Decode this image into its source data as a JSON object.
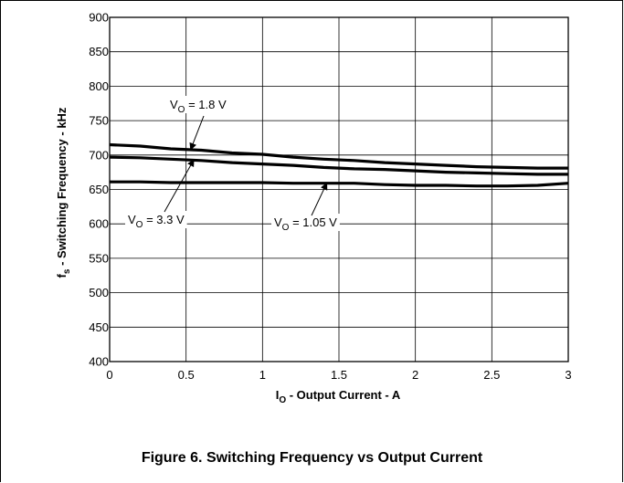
{
  "figure": {
    "caption": "Figure 6. Switching Frequency vs Output Current"
  },
  "chart_data": {
    "type": "line",
    "xlabel": "I",
    "xlabel_sub": "O",
    "xlabel_rest": " - Output Current - A",
    "ylabel": "f",
    "ylabel_sub": "s",
    "ylabel_rest": " - Switching Frequency - kHz",
    "xlim": [
      0,
      3
    ],
    "ylim": [
      400,
      900
    ],
    "xticks": [
      0,
      0.5,
      1,
      1.5,
      2,
      2.5,
      3
    ],
    "xtick_labels": [
      "0",
      "0.5",
      "1",
      "1.5",
      "2",
      "2.5",
      "3"
    ],
    "yticks": [
      400,
      450,
      500,
      550,
      600,
      650,
      700,
      750,
      800,
      850,
      900
    ],
    "ytick_labels": [
      "400",
      "450",
      "500",
      "550",
      "600",
      "650",
      "700",
      "750",
      "800",
      "850",
      "900"
    ],
    "grid": true,
    "legend": "none",
    "series": [
      {
        "name": "V_O = 1.8 V",
        "x": [
          0,
          0.2,
          0.4,
          0.6,
          0.8,
          1.0,
          1.2,
          1.4,
          1.6,
          1.8,
          2.0,
          2.2,
          2.4,
          2.6,
          2.8,
          3.0
        ],
        "y": [
          715,
          713,
          709,
          707,
          703,
          701,
          697,
          694,
          692,
          689,
          687,
          685,
          683,
          682,
          681,
          681
        ]
      },
      {
        "name": "V_O = 3.3 V",
        "x": [
          0,
          0.2,
          0.4,
          0.6,
          0.8,
          1.0,
          1.2,
          1.4,
          1.6,
          1.8,
          2.0,
          2.2,
          2.4,
          2.6,
          2.8,
          3.0
        ],
        "y": [
          697,
          696,
          694,
          692,
          689,
          687,
          685,
          682,
          680,
          679,
          677,
          675,
          674,
          673,
          672,
          672
        ]
      },
      {
        "name": "V_O = 1.05 V",
        "x": [
          0,
          0.2,
          0.4,
          0.6,
          0.8,
          1.0,
          1.2,
          1.4,
          1.6,
          1.8,
          2.0,
          2.2,
          2.4,
          2.6,
          2.8,
          3.0
        ],
        "y": [
          661,
          661,
          660,
          660,
          660,
          660,
          659,
          659,
          659,
          657,
          656,
          656,
          655,
          655,
          656,
          659
        ]
      }
    ],
    "annotations": [
      {
        "label_main": "V",
        "label_sub": "O",
        "label_rest": " = 1.8 V",
        "series": 0,
        "point_x": 0.53,
        "point_y": 708
      },
      {
        "label_main": "V",
        "label_sub": "O",
        "label_rest": " = 3.3 V",
        "series": 1,
        "point_x": 0.55,
        "point_y": 693
      },
      {
        "label_main": "V",
        "label_sub": "O",
        "label_rest": " = 1.05 V",
        "series": 2,
        "point_x": 1.42,
        "point_y": 659
      }
    ]
  },
  "colors": {
    "line": "#000000",
    "grid": "#000000",
    "background": "#ffffff"
  }
}
